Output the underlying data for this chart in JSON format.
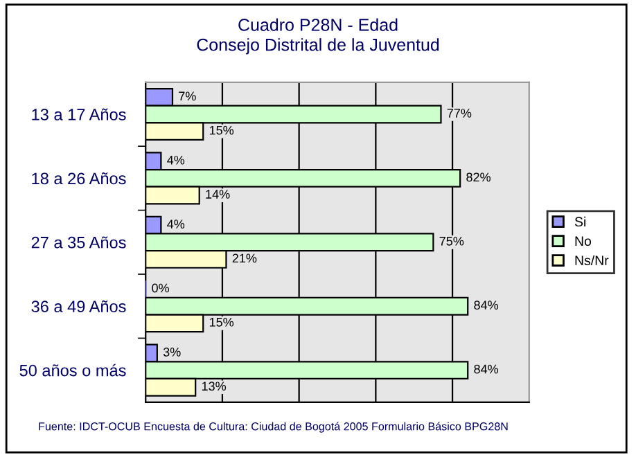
{
  "chart_data": {
    "type": "bar",
    "orientation": "horizontal",
    "title": "Cuadro P28N - Edad\nConsejo Distrital de la Juventud",
    "categories": [
      "13 a 17 Años",
      "18 a 26 Años",
      "27 a 35 Años",
      "36 a 49 Años",
      "50 años o más"
    ],
    "series": [
      {
        "name": "Si",
        "color": "#9999ff",
        "values": [
          7,
          4,
          4,
          0,
          3
        ],
        "value_labels": [
          "7%",
          "4%",
          "4%",
          "0%",
          "3%"
        ]
      },
      {
        "name": "No",
        "color": "#ccffcc",
        "values": [
          77,
          82,
          75,
          84,
          84
        ],
        "value_labels": [
          "77%",
          "82%",
          "75%",
          "84%",
          "84%"
        ]
      },
      {
        "name": "Ns/Nr",
        "color": "#ffffcc",
        "values": [
          15,
          14,
          21,
          15,
          13
        ],
        "value_labels": [
          "15%",
          "14%",
          "21%",
          "15%",
          "13%"
        ]
      }
    ],
    "xlim": [
      0,
      100
    ],
    "xticks": [
      {
        "value": 20,
        "label": null
      },
      {
        "value": 40,
        "label": null
      },
      {
        "value": 60,
        "label": null
      },
      {
        "value": 80,
        "label": null
      }
    ],
    "grid": "x",
    "legend": "right",
    "annotations": [
      "Fuente: IDCT-OCUB Encuesta de Cultura: Ciudad de Bogotá 2005 Formulario Básico BPG28N"
    ]
  }
}
